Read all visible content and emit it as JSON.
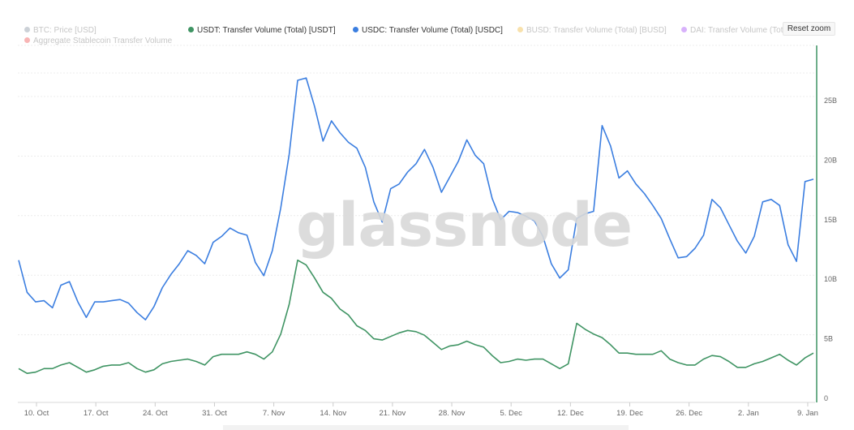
{
  "reset_zoom_label": "Reset zoom",
  "watermark": "glassnode",
  "legend": [
    {
      "label": "BTC: Price [USD]",
      "color": "#8e9aa6",
      "visible": false
    },
    {
      "label": "USDT: Transfer Volume (Total) [USDT]",
      "color": "#3f9463",
      "visible": true
    },
    {
      "label": "USDC: Transfer Volume (Total) [USDC]",
      "color": "#3b7ee0",
      "visible": true
    },
    {
      "label": "BUSD: Transfer Volume (Total) [BUSD]",
      "color": "#f0bc48",
      "visible": false
    },
    {
      "label": "DAI: Transfer Volume (Total) [DAI]",
      "color": "#a855f7",
      "visible": false
    },
    {
      "label": "Aggregate Stablecoin Transfer Volume",
      "color": "#ef5b5b",
      "visible": false
    }
  ],
  "chart_data": {
    "type": "line",
    "x_tick_labels": [
      "10. Oct",
      "17. Oct",
      "24. Oct",
      "31. Oct",
      "7. Nov",
      "14. Nov",
      "21. Nov",
      "28. Nov",
      "5. Dec",
      "12. Dec",
      "19. Dec",
      "26. Dec",
      "2. Jan",
      "9. Jan"
    ],
    "y_tick_labels": [
      "0",
      "5B",
      "10B",
      "15B",
      "20B",
      "25B"
    ],
    "ylim": [
      0,
      25000000000
    ],
    "grid": true,
    "legend_position": "top",
    "series": [
      {
        "name": "USDC: Transfer Volume (Total) [USDC]",
        "color": "#3b7ee0",
        "values": [
          11.6,
          8.9,
          8.1,
          8.2,
          7.6,
          9.5,
          9.8,
          8.1,
          6.8,
          8.1,
          8.1,
          8.2,
          8.3,
          8.0,
          7.2,
          6.6,
          7.7,
          9.3,
          10.4,
          11.3,
          12.4,
          12.0,
          11.3,
          13.1,
          13.6,
          14.3,
          13.9,
          13.7,
          11.4,
          10.3,
          12.4,
          16.0,
          20.5,
          26.7,
          26.9,
          24.5,
          21.6,
          23.3,
          22.3,
          21.5,
          21.0,
          19.4,
          16.5,
          14.8,
          17.6,
          18.0,
          19.0,
          19.7,
          20.9,
          19.4,
          17.3,
          18.6,
          19.9,
          21.7,
          20.4,
          19.7,
          16.8,
          15.0,
          15.7,
          15.6,
          15.3,
          14.9,
          13.6,
          11.3,
          10.1,
          10.8,
          15.1,
          15.5,
          15.7,
          22.9,
          21.2,
          18.5,
          19.1,
          18.0,
          17.2,
          16.2,
          15.1,
          13.4,
          11.8,
          11.9,
          12.6,
          13.7,
          16.7,
          16.0,
          14.6,
          13.2,
          12.2,
          13.6,
          16.5,
          16.7,
          16.2,
          12.9,
          11.5,
          18.2,
          18.4
        ]
      },
      {
        "name": "USDT: Transfer Volume (Total) [USDT]",
        "color": "#3f9463",
        "values": [
          2.5,
          2.1,
          2.2,
          2.5,
          2.5,
          2.8,
          3.0,
          2.6,
          2.2,
          2.4,
          2.7,
          2.8,
          2.8,
          3.0,
          2.5,
          2.2,
          2.4,
          2.9,
          3.1,
          3.2,
          3.3,
          3.1,
          2.8,
          3.5,
          3.7,
          3.7,
          3.7,
          3.9,
          3.7,
          3.3,
          3.9,
          5.4,
          7.9,
          11.6,
          11.2,
          10.1,
          8.9,
          8.4,
          7.5,
          7.0,
          6.1,
          5.7,
          5.0,
          4.9,
          5.2,
          5.5,
          5.7,
          5.6,
          5.3,
          4.7,
          4.1,
          4.4,
          4.5,
          4.8,
          4.5,
          4.3,
          3.6,
          3.0,
          3.1,
          3.3,
          3.2,
          3.3,
          3.3,
          2.9,
          2.5,
          2.9,
          6.3,
          5.8,
          5.4,
          5.1,
          4.5,
          3.8,
          3.8,
          3.7,
          3.7,
          3.7,
          4.0,
          3.3,
          3.0,
          2.8,
          2.8,
          3.3,
          3.6,
          3.5,
          3.1,
          2.6,
          2.6,
          2.9,
          3.1,
          3.4,
          3.7,
          3.2,
          2.8,
          3.4,
          3.8
        ]
      }
    ]
  }
}
